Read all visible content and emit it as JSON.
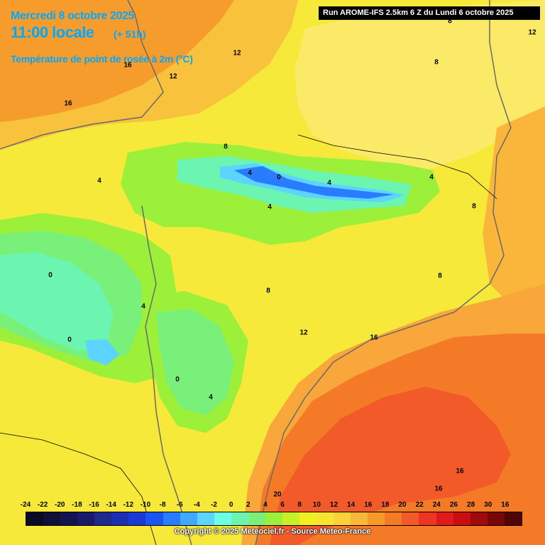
{
  "header": {
    "date": "Mercredi 8 octobre 2025",
    "time": "11:00 locale",
    "lead": "(+ 51h)",
    "parameter": "Température de point de rosée à 2m (°C)",
    "run_info": "Run AROME-IFS 2.5km 6 Z du Lundi 6 octobre 2025"
  },
  "contour_labels": [
    "16",
    "12",
    "12",
    "16",
    "8",
    "8",
    "12",
    "8",
    "4",
    "0",
    "4",
    "4",
    "4",
    "4",
    "8",
    "0",
    "4",
    "0",
    "0",
    "4",
    "8",
    "12",
    "16",
    "8",
    "20",
    "16",
    "16"
  ],
  "legend": {
    "ticks": [
      "-24",
      "-22",
      "-20",
      "-18",
      "-16",
      "-14",
      "-12",
      "-10",
      "-8",
      "-6",
      "-4",
      "-2",
      "0",
      "2",
      "4",
      "6",
      "8",
      "10",
      "12",
      "14",
      "16",
      "18",
      "20",
      "22",
      "24",
      "26",
      "28",
      "30",
      "16"
    ],
    "colors": [
      "#0a0a24",
      "#101038",
      "#141450",
      "#1a1a6a",
      "#1e2a8c",
      "#1c2eb4",
      "#1a3ad6",
      "#1a55f0",
      "#2a7cff",
      "#40a8ff",
      "#5cd4ff",
      "#6cffe6",
      "#6cf5b0",
      "#78f07a",
      "#9cf03a",
      "#c8f028",
      "#f0f020",
      "#f8e430",
      "#fcd23a",
      "#fab83a",
      "#f89a2a",
      "#f47a28",
      "#f25a2a",
      "#ee3422",
      "#e01a1a",
      "#c80e0e",
      "#a00a0a",
      "#780808",
      "#500404"
    ]
  },
  "credit": "Copyright © 2025 Meteociel.fr - Source Meteo-France"
}
